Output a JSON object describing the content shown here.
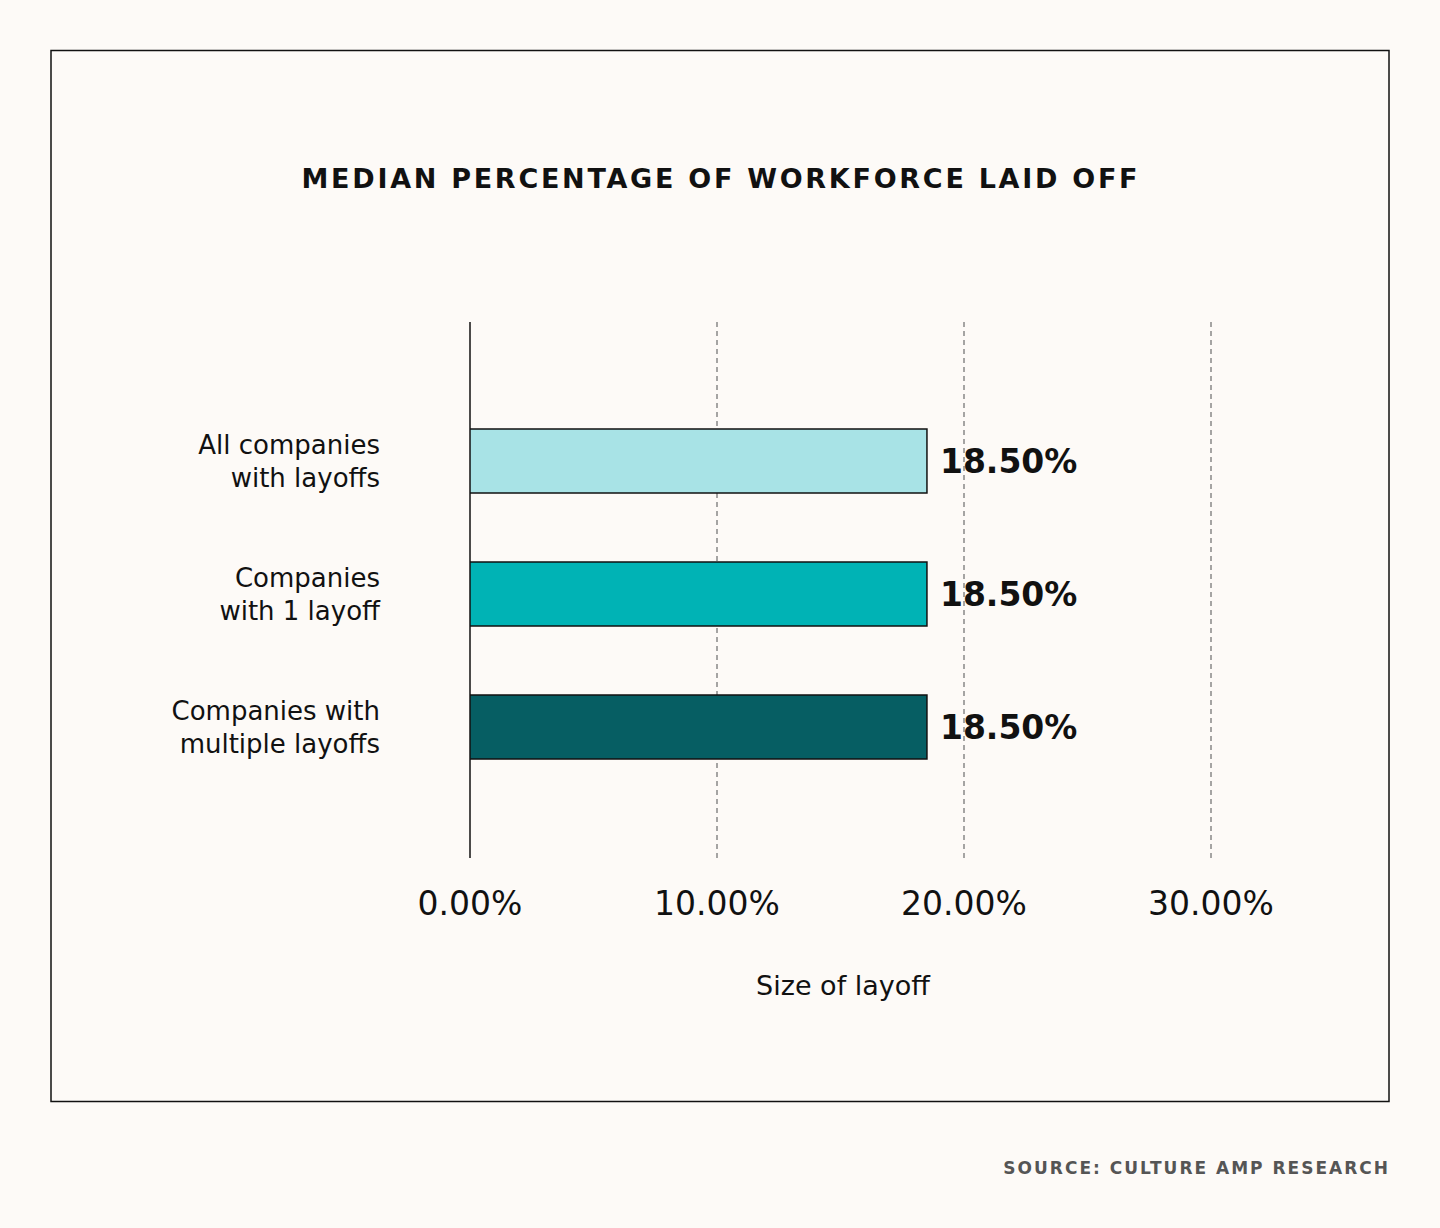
{
  "chart_data": {
    "type": "bar",
    "orientation": "horizontal",
    "title": "MEDIAN PERCENTAGE OF WORKFORCE LAID OFF",
    "categories": [
      "All companies\nwith layoffs",
      "Companies\nwith 1 layoff",
      "Companies with\nmultiple layoffs"
    ],
    "values": [
      18.5,
      18.5,
      18.5
    ],
    "value_labels": [
      "18.50%",
      "18.50%",
      "18.50%"
    ],
    "colors": [
      "#a8e3e6",
      "#00b3b5",
      "#065e63"
    ],
    "xlabel": "Size of layoff",
    "xlim": [
      0,
      30
    ],
    "xticks": [
      {
        "value": 0,
        "label": "0.00%"
      },
      {
        "value": 10,
        "label": "10.00%"
      },
      {
        "value": 20,
        "label": "20.00%"
      },
      {
        "value": 30,
        "label": "30.00%"
      }
    ],
    "grid": true,
    "data_labels": true,
    "source": "SOURCE: CULTURE AMP RESEARCH"
  }
}
